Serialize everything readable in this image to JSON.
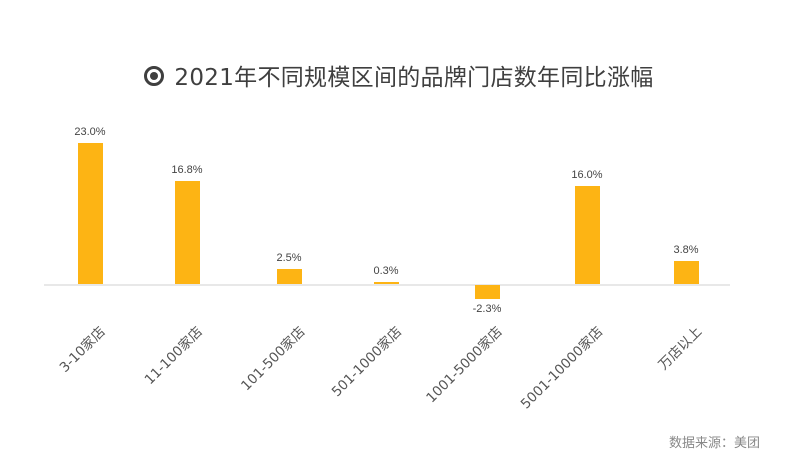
{
  "title": "2021年不同规模区间的品牌门店数年同比涨幅",
  "title_icon": "radio-target-icon",
  "source": "数据来源：美团",
  "colors": {
    "bar": "#FDB414",
    "text": "#3f3f3f",
    "baseline": "#e8e8e8"
  },
  "bars": [
    {
      "label": "3-10家店",
      "value_label": "23.0%"
    },
    {
      "label": "11-100家店",
      "value_label": "16.8%"
    },
    {
      "label": "101-500家店",
      "value_label": "2.5%"
    },
    {
      "label": "501-1000家店",
      "value_label": "0.3%"
    },
    {
      "label": "1001-5000家店",
      "value_label": "-2.3%"
    },
    {
      "label": "5001-10000家店",
      "value_label": "16.0%"
    },
    {
      "label": "万店以上",
      "value_label": "3.8%"
    }
  ],
  "chart_data": {
    "type": "bar",
    "title": "2021年不同规模区间的品牌门店数年同比涨幅",
    "categories": [
      "3-10家店",
      "11-100家店",
      "101-500家店",
      "501-1000家店",
      "1001-5000家店",
      "5001-10000家店",
      "万店以上"
    ],
    "values": [
      23.0,
      16.8,
      2.5,
      0.3,
      -2.3,
      16.0,
      3.8
    ],
    "unit": "%",
    "xlabel": "",
    "ylabel": "",
    "ylim": [
      -5,
      25
    ],
    "grid": false,
    "legend": null,
    "data_labels": true,
    "source": "数据来源：美团"
  }
}
